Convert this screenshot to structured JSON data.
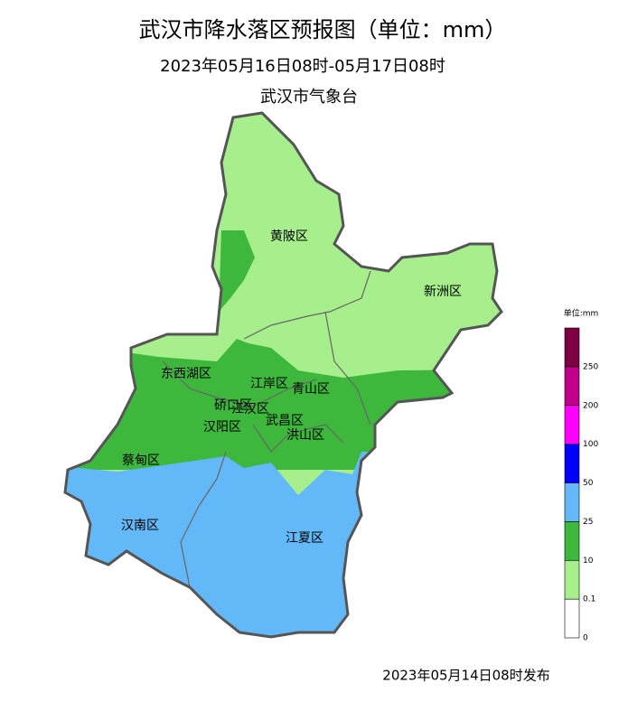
{
  "header": {
    "title": "武汉市降水落区预报图（单位：mm）",
    "period": "2023年05月16日08时-05月17日08时",
    "issuer": "武汉市气象台"
  },
  "districts": [
    "黄陂区",
    "新洲区",
    "东西湖区",
    "江岸区",
    "青山区",
    "硚口区",
    "江汉区",
    "汉阳区",
    "武昌区",
    "洪山区",
    "蔡甸区",
    "汉南区",
    "江夏区"
  ],
  "legend": {
    "title": "单位:mm",
    "ticks": [
      "0",
      "0.1",
      "10",
      "25",
      "50",
      "100",
      "200",
      "250"
    ],
    "colors": [
      "#ffffff",
      "#a6ef8c",
      "#3db83d",
      "#63b8f8",
      "#0000fe",
      "#ff00ff",
      "#c0008a",
      "#7d0042"
    ]
  },
  "footer": "2023年05月14日08时发布"
}
